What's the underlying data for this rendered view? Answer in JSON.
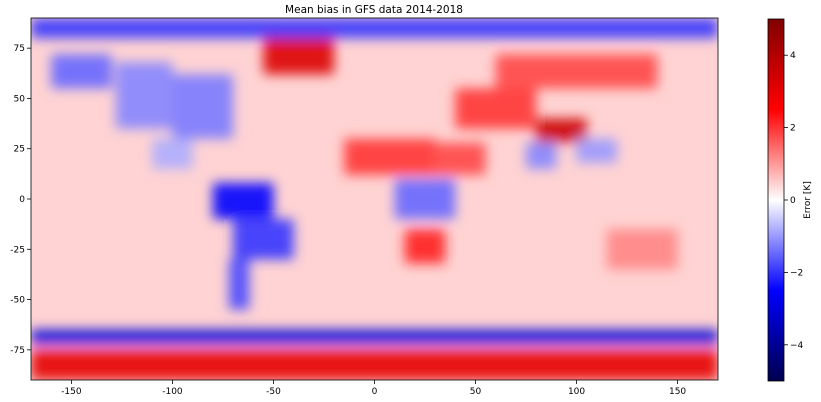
{
  "chart_data": {
    "type": "heatmap",
    "title": "Mean bias in GFS data 2014-2018",
    "xlabel": "",
    "ylabel": "",
    "xlim": [
      -170,
      170
    ],
    "ylim": [
      -90,
      90
    ],
    "x_ticks": [
      -150,
      -100,
      -50,
      0,
      50,
      100,
      150
    ],
    "y_ticks": [
      75,
      50,
      25,
      0,
      -25,
      -50,
      -75
    ],
    "colorbar": {
      "label": "Error [K]",
      "range": [
        -5,
        5
      ],
      "ticks": [
        4,
        2,
        0,
        -2,
        -4
      ],
      "colormap": "seismic",
      "colors": [
        "#00004d",
        "#0000ff",
        "#ffffff",
        "#ff0000",
        "#800000"
      ]
    },
    "regions": [
      {
        "lon": [
          -160,
          -130
        ],
        "lat": [
          55,
          72
        ],
        "bias": -1.5
      },
      {
        "lon": [
          -128,
          -100
        ],
        "lat": [
          35,
          68
        ],
        "bias": -1.2
      },
      {
        "lon": [
          -100,
          -70
        ],
        "lat": [
          30,
          62
        ],
        "bias": -1.3
      },
      {
        "lon": [
          -110,
          -90
        ],
        "lat": [
          15,
          30
        ],
        "bias": -0.8
      },
      {
        "lon": [
          -80,
          -50
        ],
        "lat": [
          -10,
          8
        ],
        "bias": -2.5
      },
      {
        "lon": [
          -70,
          -40
        ],
        "lat": [
          -30,
          -10
        ],
        "bias": -2.0
      },
      {
        "lon": [
          -72,
          -62
        ],
        "lat": [
          -55,
          -30
        ],
        "bias": -1.8
      },
      {
        "lon": [
          -55,
          -20
        ],
        "lat": [
          62,
          82
        ],
        "bias": 3.2
      },
      {
        "lon": [
          -15,
          30
        ],
        "lat": [
          12,
          30
        ],
        "bias": 2.0
      },
      {
        "lon": [
          30,
          55
        ],
        "lat": [
          12,
          28
        ],
        "bias": 1.8
      },
      {
        "lon": [
          10,
          40
        ],
        "lat": [
          -10,
          10
        ],
        "bias": -1.5
      },
      {
        "lon": [
          15,
          35
        ],
        "lat": [
          -32,
          -15
        ],
        "bias": 2.2
      },
      {
        "lon": [
          40,
          80
        ],
        "lat": [
          35,
          55
        ],
        "bias": 2.0
      },
      {
        "lon": [
          80,
          105
        ],
        "lat": [
          28,
          40
        ],
        "bias": 3.5
      },
      {
        "lon": [
          60,
          140
        ],
        "lat": [
          55,
          72
        ],
        "bias": 1.8
      },
      {
        "lon": [
          75,
          90
        ],
        "lat": [
          15,
          28
        ],
        "bias": -1.2
      },
      {
        "lon": [
          100,
          120
        ],
        "lat": [
          18,
          30
        ],
        "bias": -1.0
      },
      {
        "lon": [
          115,
          150
        ],
        "lat": [
          -35,
          -15
        ],
        "bias": 1.2
      },
      {
        "lon": [
          -170,
          170
        ],
        "lat": [
          -72,
          -65
        ],
        "bias": -3.0
      },
      {
        "lon": [
          -170,
          170
        ],
        "lat": [
          -90,
          -75
        ],
        "bias": 3.0
      },
      {
        "lon": [
          -170,
          170
        ],
        "lat": [
          80,
          90
        ],
        "bias": -2.0
      },
      {
        "lon": [
          -170,
          170
        ],
        "lat": [
          -40,
          40
        ],
        "bias": 0.6
      }
    ]
  }
}
